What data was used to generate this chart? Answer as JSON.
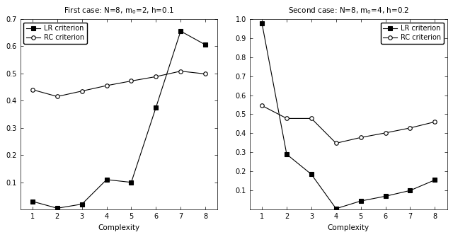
{
  "left": {
    "title": "First case: N=8, m$_0$=2, h=0.1",
    "x": [
      1,
      2,
      3,
      4,
      5,
      6,
      7,
      8
    ],
    "lr": [
      0.03,
      0.005,
      0.02,
      0.11,
      0.1,
      0.375,
      0.655,
      0.605
    ],
    "rc": [
      0.44,
      0.415,
      0.435,
      0.455,
      0.472,
      0.488,
      0.508,
      0.498
    ],
    "ylim": [
      0,
      0.7
    ],
    "yticks": [
      0.1,
      0.2,
      0.3,
      0.4,
      0.5,
      0.6,
      0.7
    ],
    "xlabel": "Complexity",
    "xlim": [
      0.5,
      8.5
    ],
    "xticks": [
      1,
      2,
      3,
      4,
      5,
      6,
      7,
      8
    ],
    "legend_loc": "upper left"
  },
  "right": {
    "title": "Second case: N=8, m$_0$=4, h=0.2",
    "x": [
      1,
      2,
      3,
      4,
      5,
      6,
      7,
      8
    ],
    "lr": [
      0.975,
      0.29,
      0.185,
      0.005,
      0.045,
      0.07,
      0.1,
      0.155
    ],
    "rc": [
      0.545,
      0.478,
      0.478,
      0.348,
      0.378,
      0.402,
      0.428,
      0.46
    ],
    "ylim": [
      0,
      1.0
    ],
    "yticks": [
      0.1,
      0.2,
      0.3,
      0.4,
      0.5,
      0.6,
      0.7,
      0.8,
      0.9,
      1.0
    ],
    "xlabel": "Complexity",
    "xlim": [
      0.5,
      8.5
    ],
    "xticks": [
      1,
      2,
      3,
      4,
      5,
      6,
      7,
      8
    ],
    "legend_loc": "upper right"
  },
  "legend_lr": "LR criterion",
  "legend_rc": "RC criterion",
  "line_color": "#000000",
  "lr_marker": "s",
  "rc_marker": "o",
  "markersize": 4,
  "linewidth": 0.8,
  "title_fontsize": 7.5,
  "label_fontsize": 7.5,
  "tick_fontsize": 7,
  "legend_fontsize": 7,
  "bg_color": "#ffffff"
}
